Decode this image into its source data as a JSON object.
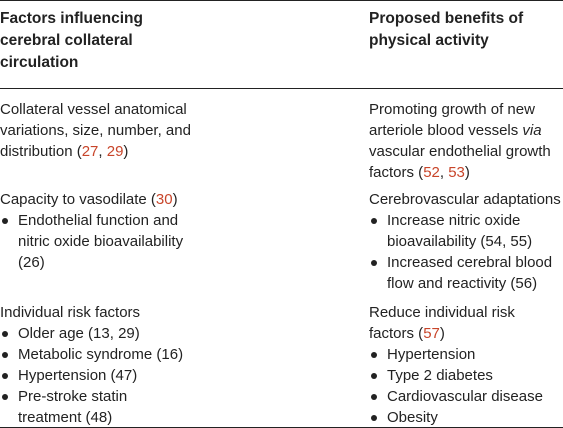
{
  "table": {
    "headers": {
      "left": "Factors influencing cerebral collateral circulation",
      "right": "Proposed benefits of physical activity"
    },
    "left": {
      "row1": {
        "text_a": "Collateral vessel anatomical variations, size, number, and distribution (",
        "ref1": "27",
        "sep1": ", ",
        "ref2": "29",
        "text_b": ")"
      },
      "row2": {
        "title_a": "Capacity to vasodilate (",
        "title_ref": "30",
        "title_b": ")",
        "bullets": [
          {
            "text_a": "Endothelial function and nitric oxide bioavailability (",
            "ref": "26",
            "text_b": ")"
          }
        ]
      },
      "row3": {
        "title": "Individual risk factors",
        "bullets": [
          {
            "text_a": "Older age (",
            "ref1": "13",
            "sep": ", ",
            "ref2": "29",
            "text_b": ")"
          },
          {
            "text_a": "Metabolic syndrome (",
            "ref1": "16",
            "text_b": ")"
          },
          {
            "text_a": "Hypertension (",
            "ref1": "47",
            "text_b": ")"
          },
          {
            "text_a": "Pre-stroke statin treatment (",
            "ref1": "48",
            "text_b": ")"
          }
        ]
      }
    },
    "right": {
      "row1": {
        "text_a": "Promoting growth of new arteriole blood vessels ",
        "italic": "via",
        "text_b": " vascular endothelial growth factors (",
        "ref1": "52",
        "sep": ", ",
        "ref2": "53",
        "text_c": ")"
      },
      "row2": {
        "title": "Cerebrovascular adaptations",
        "bullets": [
          {
            "text_a": "Increase nitric oxide bioavailability (",
            "ref1": "54",
            "sep": ", ",
            "ref2": "55",
            "text_b": ")"
          },
          {
            "text_a": "Increased cerebral blood flow and reactivity (",
            "ref1": "56",
            "text_b": ")"
          }
        ]
      },
      "row3": {
        "title_a": "Reduce individual risk factors (",
        "title_ref": "57",
        "title_b": ")",
        "bullets": [
          {
            "text": "Hypertension"
          },
          {
            "text": "Type 2 diabetes"
          },
          {
            "text": "Cardiovascular disease"
          },
          {
            "text": "Obesity"
          }
        ]
      }
    },
    "colors": {
      "text": "#222222",
      "reference_link": "#c8452a",
      "rule": "#222222"
    }
  }
}
